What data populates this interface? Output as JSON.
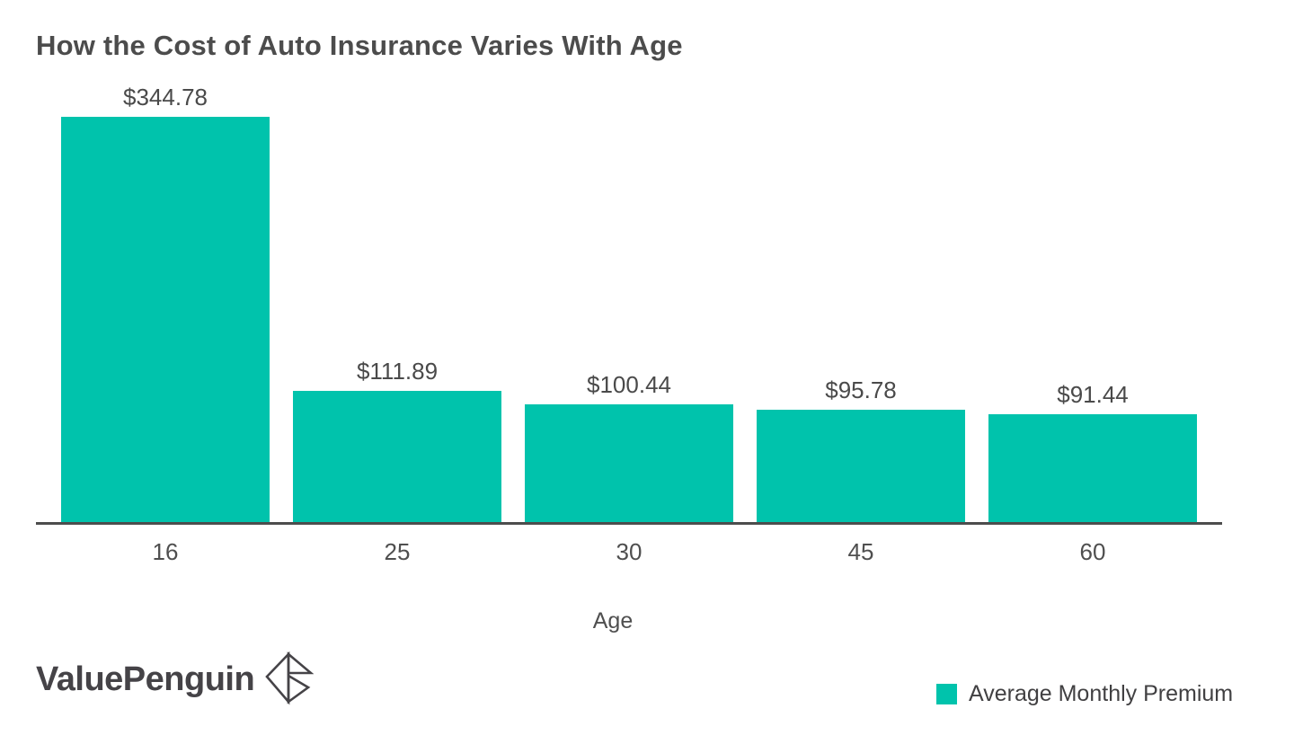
{
  "page": {
    "background": "#ffffff"
  },
  "chart_data": {
    "type": "bar",
    "title": "How the Cost of Auto Insurance Varies With Age",
    "categories": [
      "16",
      "25",
      "30",
      "45",
      "60"
    ],
    "values": [
      344.78,
      111.89,
      100.44,
      95.78,
      91.44
    ],
    "value_labels": [
      "$344.78",
      "$111.89",
      "$100.44",
      "$95.78",
      "$91.44"
    ],
    "series": [
      {
        "name": "Average Monthly Premium",
        "values": [
          344.78,
          111.89,
          100.44,
          95.78,
          91.44
        ]
      }
    ],
    "xlabel": "Age",
    "ylabel": "",
    "ylim": [
      0,
      360
    ],
    "grid": false,
    "bar_color": "#00c3ac",
    "axis_color": "#4d4d4d",
    "legend_position": "bottom-right"
  },
  "branding": {
    "logo_text": "ValuePenguin",
    "logo_icon": "origami-penguin-icon"
  },
  "legend": {
    "label": "Average Monthly Premium",
    "swatch_color": "#00c3ac"
  },
  "colors": {
    "accent_teal": "#00c3ac",
    "text_dark": "#4a4a4a",
    "title_gray": "#4c4c4c",
    "axis_gray": "#4d4d4d",
    "logo_charcoal": "#454347"
  }
}
